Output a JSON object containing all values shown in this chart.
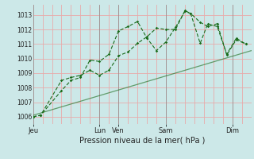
{
  "bg_color": "#cce8e8",
  "grid_color": "#e8aaaa",
  "line_color": "#1a6b1a",
  "ylim": [
    1005.5,
    1013.7
  ],
  "yticks": [
    1006,
    1007,
    1008,
    1009,
    1010,
    1011,
    1012,
    1013
  ],
  "xlim": [
    0,
    11.5
  ],
  "day_ticks": [
    0,
    3.5,
    4.5,
    7.0,
    10.5
  ],
  "day_labels": [
    "Jeu",
    "Lun",
    "Ven",
    "Sam",
    "Dim"
  ],
  "xlabel": "Pression niveau de la mer( hPa )",
  "vline_positions": [
    0,
    3.5,
    4.5,
    7.0,
    10.5
  ],
  "line1_x": [
    0.0,
    0.4,
    1.5,
    2.0,
    2.5,
    3.0,
    3.5,
    4.0,
    4.5,
    5.0,
    5.5,
    6.0,
    6.5,
    7.0,
    7.5,
    8.0,
    8.3,
    8.8,
    9.2,
    9.7,
    10.2,
    10.7,
    11.2
  ],
  "line1_y": [
    1006.0,
    1006.1,
    1007.8,
    1008.5,
    1008.7,
    1009.9,
    1009.8,
    1010.3,
    1011.9,
    1012.2,
    1012.55,
    1011.4,
    1010.55,
    1011.15,
    1012.15,
    1013.25,
    1013.1,
    1012.5,
    1012.2,
    1012.4,
    1010.25,
    1011.3,
    1011.0
  ],
  "line2_x": [
    0.0,
    0.4,
    1.5,
    2.0,
    2.5,
    3.0,
    3.5,
    4.0,
    4.5,
    5.0,
    5.5,
    6.0,
    6.5,
    7.0,
    7.5,
    8.0,
    8.3,
    8.8,
    9.2,
    9.7,
    10.2,
    10.7,
    11.2
  ],
  "line2_y": [
    1006.0,
    1006.1,
    1008.5,
    1008.7,
    1008.85,
    1009.2,
    1008.85,
    1009.2,
    1010.2,
    1010.45,
    1011.05,
    1011.5,
    1012.1,
    1012.0,
    1012.0,
    1013.3,
    1013.1,
    1011.05,
    1012.4,
    1012.2,
    1010.3,
    1011.4,
    1011.0
  ],
  "line3_x": [
    0.0,
    11.5
  ],
  "line3_y": [
    1006.1,
    1010.55
  ],
  "n_vgrid": 24,
  "ytick_fontsize": 5.5,
  "xtick_fontsize": 6.0,
  "xlabel_fontsize": 7.0
}
